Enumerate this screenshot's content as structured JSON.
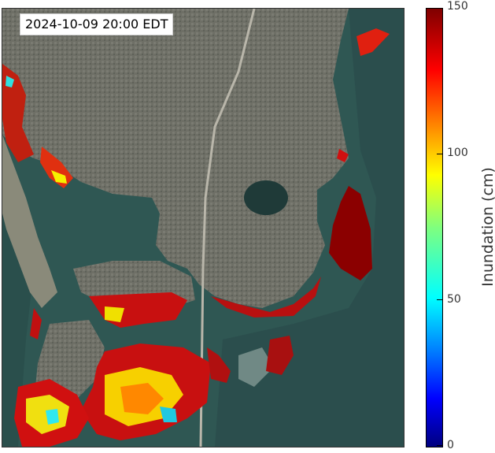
{
  "timestamp": "2024-10-09 20:00 EDT",
  "colorbar": {
    "label": "Inundation (cm)",
    "min": 0,
    "max": 150,
    "ticks": [
      "150",
      "100",
      "50",
      "0"
    ],
    "colormap": "jet"
  },
  "colors": {
    "water": "#2f5753",
    "gulf": "#2a4d4a",
    "land": "#6d6f64",
    "low_inundation": "#00ffff",
    "mid_inundation": "#ffff00",
    "high_inundation": "#8b0000"
  }
}
